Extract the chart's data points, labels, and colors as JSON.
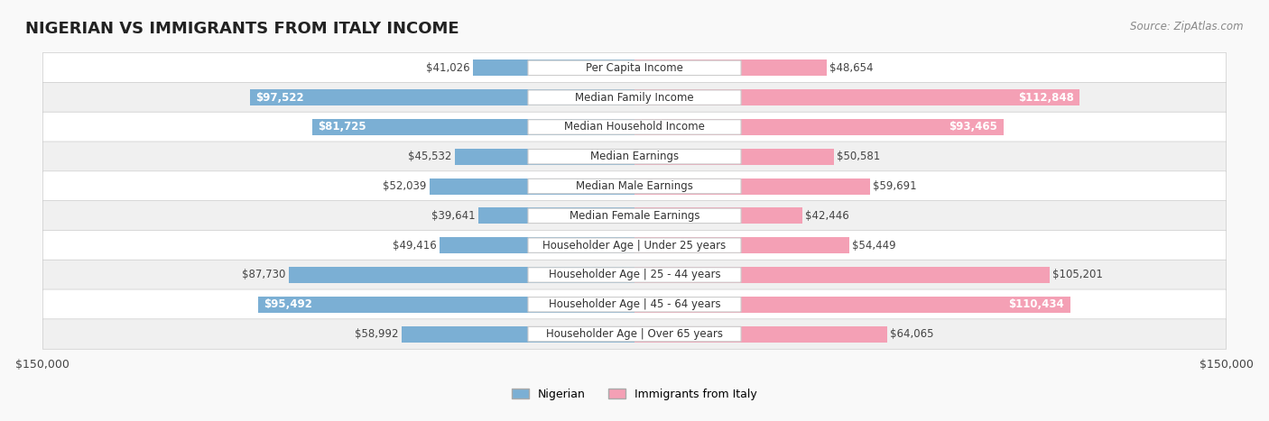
{
  "title": "NIGERIAN VS IMMIGRANTS FROM ITALY INCOME",
  "source": "Source: ZipAtlas.com",
  "categories": [
    "Per Capita Income",
    "Median Family Income",
    "Median Household Income",
    "Median Earnings",
    "Median Male Earnings",
    "Median Female Earnings",
    "Householder Age | Under 25 years",
    "Householder Age | 25 - 44 years",
    "Householder Age | 45 - 64 years",
    "Householder Age | Over 65 years"
  ],
  "nigerian_values": [
    41026,
    97522,
    81725,
    45532,
    52039,
    39641,
    49416,
    87730,
    95492,
    58992
  ],
  "italy_values": [
    48654,
    112848,
    93465,
    50581,
    59691,
    42446,
    54449,
    105201,
    110434,
    64065
  ],
  "nigerian_color": "#7BAFD4",
  "nigerian_color_dark": "#5B8DB8",
  "italy_color": "#F4A0B5",
  "italy_color_dark": "#E8607A",
  "max_value": 150000,
  "bar_height": 0.55,
  "background_color": "#f5f5f5",
  "row_colors": [
    "#ffffff",
    "#f0f0f0"
  ],
  "label_color_inside": "#ffffff",
  "label_color_outside": "#555555",
  "threshold_nigerian": [
    97522,
    81725,
    95492
  ],
  "threshold_italy": [
    112848,
    93465,
    110434
  ],
  "nigerian_labels": [
    "$41,026",
    "$97,522",
    "$81,725",
    "$45,532",
    "$52,039",
    "$39,641",
    "$49,416",
    "$87,730",
    "$95,492",
    "$58,992"
  ],
  "italy_labels": [
    "$48,654",
    "$112,848",
    "$93,465",
    "$50,581",
    "$59,691",
    "$42,446",
    "$54,449",
    "$105,201",
    "$110,434",
    "$64,065"
  ],
  "xlim": 150000,
  "legend_nigerian": "Nigerian",
  "legend_italy": "Immigrants from Italy"
}
